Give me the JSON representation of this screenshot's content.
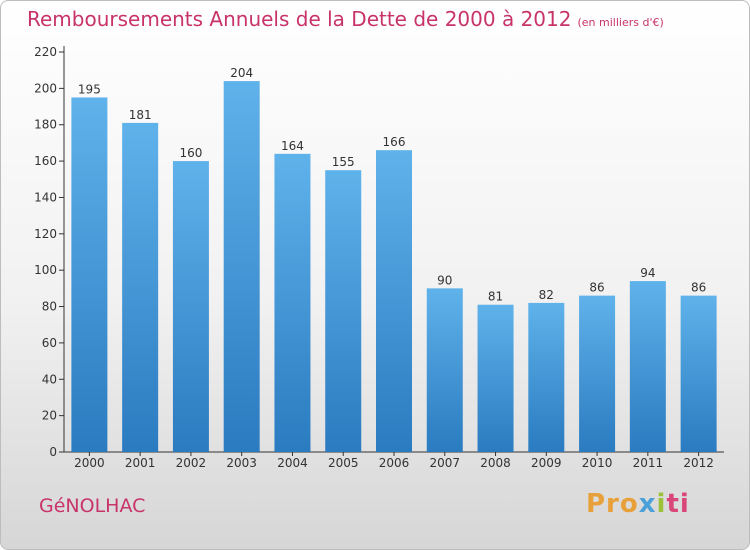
{
  "header": {
    "title": "Remboursements Annuels de la Dette de 2000 à 2012",
    "subtitle": "(en milliers d'€)"
  },
  "footer": {
    "town": "GéNOLHAC",
    "logo_parts": [
      "Pro",
      "x",
      "i",
      "ti"
    ]
  },
  "colors": {
    "title": "#c8336a",
    "bar_top": "#5fb2ea",
    "bar_bottom": "#2a7bc0",
    "axis": "#333333"
  },
  "chart_data": {
    "type": "bar",
    "categories": [
      "2000",
      "2001",
      "2002",
      "2003",
      "2004",
      "2005",
      "2006",
      "2007",
      "2008",
      "2009",
      "2010",
      "2011",
      "2012"
    ],
    "values": [
      195,
      181,
      160,
      204,
      164,
      155,
      166,
      90,
      81,
      82,
      86,
      94,
      86
    ],
    "yticks": [
      0,
      20,
      40,
      60,
      80,
      100,
      120,
      140,
      160,
      180,
      200,
      220
    ],
    "ylim": [
      0,
      220
    ],
    "title": "Remboursements Annuels de la Dette de 2000 à 2012",
    "xlabel": "",
    "ylabel": "",
    "grid": false,
    "legend": "none",
    "data_labels": true
  }
}
